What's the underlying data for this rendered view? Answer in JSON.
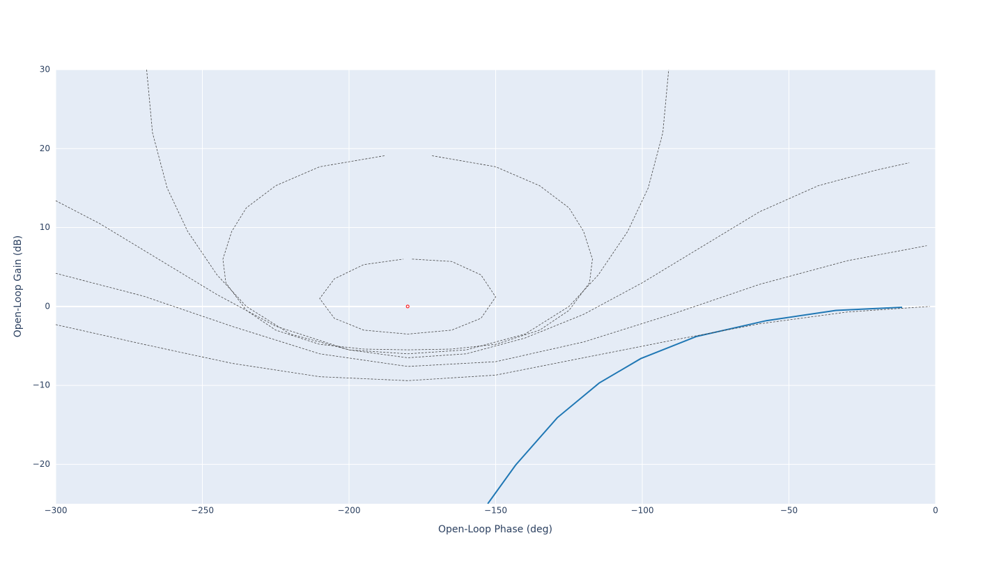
{
  "chart_data": {
    "type": "line",
    "x_label": "Open-Loop Phase (deg)",
    "y_label": "Open-Loop Gain (dB)",
    "xlim": [
      -300,
      0
    ],
    "ylim": [
      -25,
      30
    ],
    "xticks": [
      {
        "value": -300,
        "label": "−300"
      },
      {
        "value": -250,
        "label": "−250"
      },
      {
        "value": -200,
        "label": "−200"
      },
      {
        "value": -150,
        "label": "−150"
      },
      {
        "value": -100,
        "label": "−100"
      },
      {
        "value": -50,
        "label": "−50"
      },
      0
    ],
    "yticks": [
      {
        "value": -20,
        "label": "−20"
      },
      {
        "value": -10,
        "label": "−10"
      },
      0,
      10,
      20,
      30
    ],
    "grid": true,
    "background": "#e5ecf6",
    "series": [
      {
        "color": "#1f77b4",
        "dash": false,
        "marker": false,
        "x": [
          -152.7,
          -143.2,
          -129,
          -114.7,
          -100.5,
          -81.5,
          -57.7,
          -34,
          -11.4
        ],
        "values": [
          -25,
          -20.1,
          -14.1,
          -9.7,
          -6.6,
          -3.8,
          -1.8,
          -0.5,
          -0.1
        ]
      },
      {
        "color": "#444444",
        "dash": true,
        "marker": false,
        "x": [
          -178.5,
          -165,
          -155,
          -150,
          -155,
          -165,
          -180,
          -195,
          -205,
          -210,
          -205,
          -195,
          -181.5
        ],
        "values": [
          6.0,
          5.7,
          4.0,
          1.2,
          -1.5,
          -3.0,
          -3.5,
          -3.0,
          -1.5,
          1.0,
          3.5,
          5.3,
          6.0
        ]
      },
      {
        "color": "#444444",
        "dash": true,
        "marker": false,
        "x": [
          -171.7,
          -150,
          -135,
          -125,
          -120,
          -117,
          -118,
          -125,
          -135,
          -150,
          -165,
          -180,
          -195,
          -210,
          -225,
          -235,
          -242,
          -243,
          -240,
          -235,
          -225,
          -210,
          -187.9
        ],
        "values": [
          19.1,
          17.7,
          15.3,
          12.5,
          9.5,
          6,
          3,
          -0.5,
          -3,
          -4.8,
          -5.4,
          -5.5,
          -5.4,
          -4.8,
          -3,
          -0.5,
          3,
          6,
          9.5,
          12.5,
          15.3,
          17.7,
          19.1
        ]
      },
      {
        "color": "#444444",
        "dash": true,
        "marker": false,
        "x": [
          -269,
          -267,
          -262,
          -255,
          -245,
          -235,
          -220,
          -200,
          -180,
          -160,
          -140,
          -125,
          -115,
          -105,
          -98,
          -93,
          -91
        ],
        "values": [
          30,
          22,
          15,
          9.5,
          4,
          0,
          -3.5,
          -5.5,
          -6.0,
          -5.5,
          -3.5,
          0,
          4,
          9.5,
          15,
          22,
          30
        ]
      },
      {
        "color": "#444444",
        "dash": true,
        "marker": false,
        "x": [
          -300,
          -285,
          -265,
          -245,
          -225,
          -200,
          -180,
          -160,
          -140,
          -120,
          -100,
          -80,
          -60,
          -40,
          -20,
          -9
        ],
        "values": [
          13.4,
          10.5,
          6,
          1.5,
          -2.5,
          -5.5,
          -6.5,
          -6,
          -4,
          -1,
          3,
          7.5,
          12,
          15.3,
          17.3,
          18.2
        ]
      },
      {
        "color": "#444444",
        "dash": true,
        "marker": false,
        "x": [
          -300,
          -270,
          -240,
          -210,
          -180,
          -150,
          -120,
          -90,
          -60,
          -30,
          -3
        ],
        "values": [
          4.2,
          1.3,
          -2.5,
          -6,
          -7.6,
          -7,
          -4.5,
          -1,
          2.8,
          5.8,
          7.7
        ]
      },
      {
        "color": "#444444",
        "dash": true,
        "marker": false,
        "x": [
          -300,
          -270,
          -240,
          -210,
          -180,
          -150,
          -120,
          -90,
          -60,
          -30,
          -2
        ],
        "values": [
          -2.3,
          -4.8,
          -7.2,
          -8.9,
          -9.4,
          -8.7,
          -6.5,
          -4.3,
          -2.2,
          -0.7,
          0
        ]
      },
      {
        "color": "#ff0000",
        "dash": false,
        "marker": true,
        "x": [
          -180
        ],
        "values": [
          0
        ]
      }
    ]
  }
}
